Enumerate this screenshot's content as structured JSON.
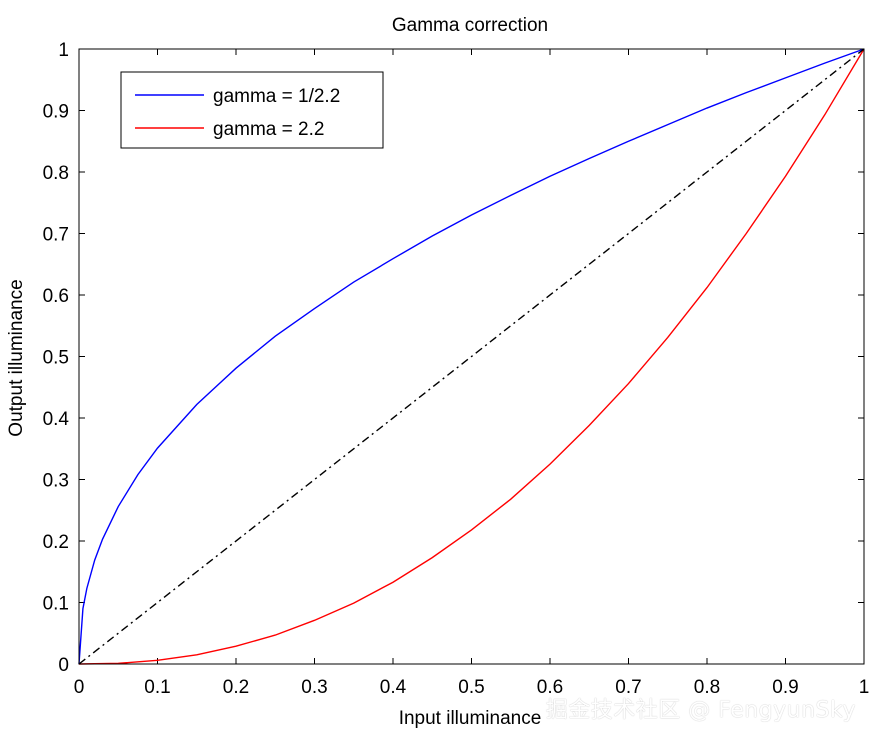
{
  "chart_data": {
    "type": "line",
    "title": "Gamma correction",
    "xlabel": "Input illuminance",
    "ylabel": "Output illuminance",
    "xlim": [
      0,
      1
    ],
    "ylim": [
      0,
      1
    ],
    "xticks": [
      "0",
      "0.1",
      "0.2",
      "0.3",
      "0.4",
      "0.5",
      "0.6",
      "0.7",
      "0.8",
      "0.9",
      "1"
    ],
    "yticks": [
      "0",
      "0.1",
      "0.2",
      "0.3",
      "0.4",
      "0.5",
      "0.6",
      "0.7",
      "0.8",
      "0.9",
      "1"
    ],
    "grid": false,
    "legend_position": "top-left",
    "series": [
      {
        "name": "gamma = 1/2.2",
        "color": "#0000ff",
        "style": "solid",
        "x": [
          0,
          0.005,
          0.01,
          0.02,
          0.03,
          0.05,
          0.075,
          0.1,
          0.15,
          0.2,
          0.25,
          0.3,
          0.35,
          0.4,
          0.45,
          0.5,
          0.55,
          0.6,
          0.65,
          0.7,
          0.75,
          0.8,
          0.85,
          0.9,
          0.95,
          1
        ],
        "y": [
          0,
          0.09,
          0.123,
          0.169,
          0.203,
          0.256,
          0.308,
          0.351,
          0.422,
          0.481,
          0.533,
          0.578,
          0.621,
          0.659,
          0.696,
          0.73,
          0.762,
          0.793,
          0.822,
          0.85,
          0.877,
          0.904,
          0.929,
          0.953,
          0.977,
          1
        ]
      },
      {
        "name": "gamma = 2.2",
        "color": "#ff0000",
        "style": "solid",
        "x": [
          0,
          0.05,
          0.1,
          0.15,
          0.2,
          0.25,
          0.3,
          0.35,
          0.4,
          0.45,
          0.5,
          0.55,
          0.6,
          0.65,
          0.7,
          0.75,
          0.8,
          0.85,
          0.9,
          0.95,
          1
        ],
        "y": [
          0,
          0.001,
          0.006,
          0.015,
          0.029,
          0.047,
          0.071,
          0.099,
          0.133,
          0.173,
          0.218,
          0.268,
          0.325,
          0.388,
          0.456,
          0.531,
          0.612,
          0.7,
          0.793,
          0.893,
          1
        ]
      },
      {
        "color": "#000000",
        "style": "dash-dot",
        "x": [
          0,
          1
        ],
        "y": [
          0,
          1
        ]
      }
    ]
  },
  "watermark": "掘金技术社区 @ FengyunSky"
}
